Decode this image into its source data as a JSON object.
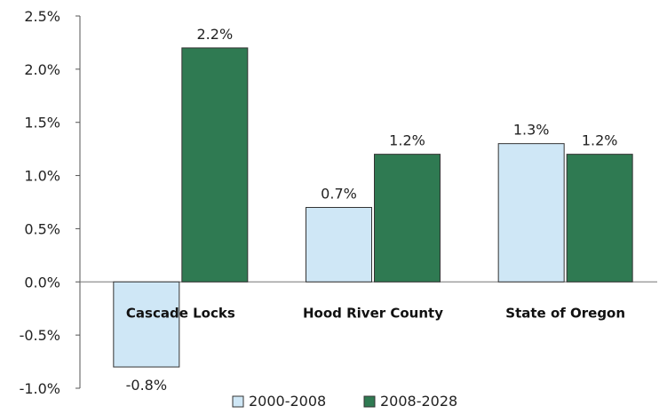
{
  "chart_data": {
    "type": "bar",
    "categories": [
      "Cascade Locks",
      "Hood River County",
      "State of Oregon"
    ],
    "series": [
      {
        "name": "2000-2008",
        "values": [
          -0.8,
          0.7,
          1.3
        ],
        "color": "#cfe7f6",
        "labels": [
          "-0.8%",
          "0.7%",
          "1.3%"
        ]
      },
      {
        "name": "2008-2028",
        "values": [
          2.2,
          1.2,
          1.2
        ],
        "color": "#2f7a52",
        "labels": [
          "2.2%",
          "1.2%",
          "1.2%"
        ]
      }
    ],
    "y_ticks": [
      -1.0,
      -0.5,
      0.0,
      0.5,
      1.0,
      1.5,
      2.0,
      2.5
    ],
    "y_tick_labels": [
      "-1.0%",
      "-0.5%",
      "0.0%",
      "0.5%",
      "1.0%",
      "1.5%",
      "2.0%",
      "2.5%"
    ],
    "ylim": [
      -1.0,
      2.5
    ],
    "legend_position": "bottom",
    "grid": false
  }
}
